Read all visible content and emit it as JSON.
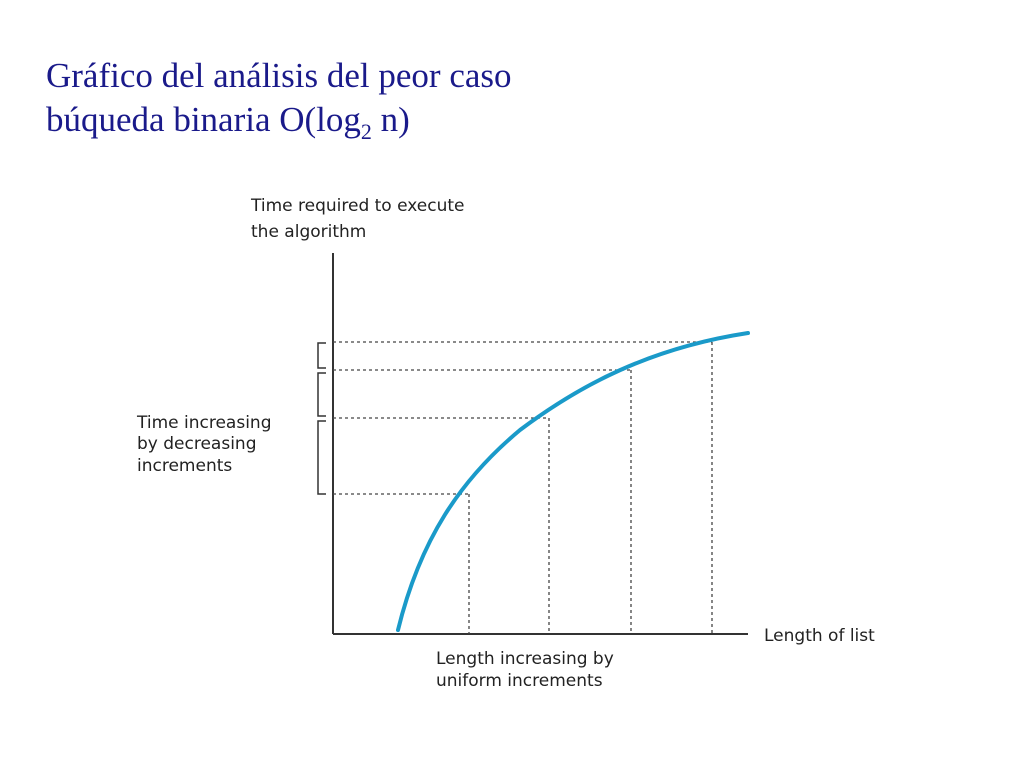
{
  "title": {
    "line1": "Gráfico del análisis del peor caso",
    "line2_prefix": "búqueda binaria O(log",
    "line2_sub": "2",
    "line2_suffix": " n)"
  },
  "diagram": {
    "y_axis_label": [
      "Time required to execute",
      "the algorithm"
    ],
    "x_axis_label": "Length of list",
    "left_annotation": [
      "Time increasing",
      "by decreasing",
      "increments"
    ],
    "bottom_annotation": [
      "Length increasing by",
      "uniform increments"
    ],
    "curve_color": "#1a9ac9",
    "axis_color": "#333333",
    "guide_color": "#444444"
  }
}
